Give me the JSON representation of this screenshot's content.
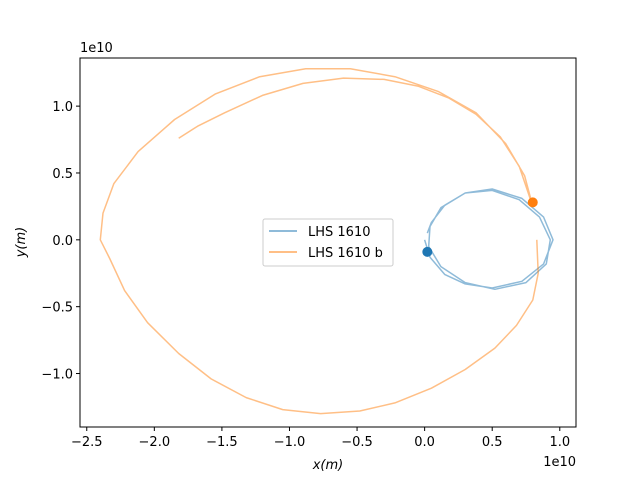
{
  "chart_data": {
    "type": "line",
    "title": "",
    "xlabel": "x(m)",
    "ylabel": "y(m)",
    "x_offset_label": "1e10",
    "y_offset_label": "1e10",
    "xlim": [
      -2.55,
      1.12
    ],
    "ylim": [
      -1.4,
      1.36
    ],
    "x_ticks": [
      -2.5,
      -2.0,
      -1.5,
      -1.0,
      -0.5,
      0.0,
      0.5,
      1.0
    ],
    "x_tick_labels": [
      "−2.5",
      "−2.0",
      "−1.5",
      "−1.0",
      "−0.5",
      "0.0",
      "0.5",
      "1.0"
    ],
    "y_ticks": [
      -1.0,
      -0.5,
      0.0,
      0.5,
      1.0
    ],
    "y_tick_labels": [
      "−1.0",
      "−0.5",
      "0.0",
      "0.5",
      "1.0"
    ],
    "grid": false,
    "legend_position": "center",
    "series": [
      {
        "name": "LHS 1610",
        "color": "#1f77b4",
        "opacity": 0.5,
        "marker": {
          "x": 0.02,
          "y": -0.09
        },
        "x": [
          0.0,
          0.04,
          0.15,
          0.3,
          0.5,
          0.72,
          0.88,
          0.95,
          0.88,
          0.72,
          0.5,
          0.3,
          0.12,
          0.04,
          0.03,
          0.12,
          0.3,
          0.52,
          0.75,
          0.9,
          0.93,
          0.85,
          0.7,
          0.5,
          0.3,
          0.15,
          0.05,
          0.02
        ],
        "y": [
          0.0,
          -0.13,
          -0.26,
          -0.33,
          -0.36,
          -0.31,
          -0.18,
          0.0,
          0.17,
          0.31,
          0.38,
          0.35,
          0.24,
          0.1,
          -0.05,
          -0.2,
          -0.32,
          -0.37,
          -0.32,
          -0.18,
          0.0,
          0.17,
          0.3,
          0.37,
          0.35,
          0.26,
          0.13,
          0.05
        ]
      },
      {
        "name": "LHS 1610 b",
        "color": "#ff7f0e",
        "opacity": 0.5,
        "marker": {
          "x": 0.8,
          "y": 0.28
        },
        "x": [
          0.83,
          0.84,
          0.8,
          0.68,
          0.52,
          0.3,
          0.05,
          -0.22,
          -0.48,
          -0.77,
          -1.05,
          -1.32,
          -1.58,
          -1.82,
          -2.05,
          -2.22,
          -2.33,
          -2.4,
          -2.38,
          -2.3,
          -2.12,
          -1.85,
          -1.55,
          -1.22,
          -0.88,
          -0.55,
          -0.22,
          0.1,
          0.38,
          0.6,
          0.74,
          0.8,
          0.7,
          0.56,
          0.38,
          0.18,
          -0.05,
          -0.3,
          -0.6,
          -0.9,
          -1.2,
          -1.48,
          -1.68,
          -1.82
        ],
        "y": [
          0.0,
          -0.25,
          -0.45,
          -0.64,
          -0.81,
          -0.97,
          -1.11,
          -1.22,
          -1.28,
          -1.3,
          -1.27,
          -1.18,
          -1.04,
          -0.85,
          -0.62,
          -0.38,
          -0.14,
          0.0,
          0.2,
          0.42,
          0.66,
          0.9,
          1.09,
          1.22,
          1.28,
          1.28,
          1.22,
          1.11,
          0.95,
          0.72,
          0.48,
          0.25,
          0.55,
          0.77,
          0.94,
          1.06,
          1.15,
          1.2,
          1.21,
          1.17,
          1.08,
          0.95,
          0.85,
          0.76
        ]
      }
    ]
  }
}
